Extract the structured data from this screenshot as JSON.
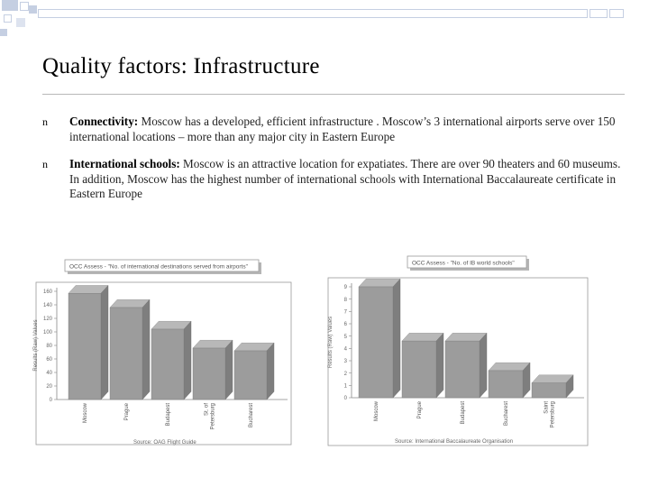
{
  "slide": {
    "title": "Quality factors: Infrastructure",
    "bullets": [
      {
        "term": "Connectivity:",
        "text": " Moscow has a developed, efficient infrastructure . Moscow’s 3 international airports serve over 150 international locations – more than any major city in Eastern Europe"
      },
      {
        "term": "International schools:",
        "text": "  Moscow is an attractive location for expatiates. There are over 90 theaters and 60 museums. In addition, Moscow has the highest number of international schools with International Baccalaureate certificate in Eastern Europe"
      }
    ],
    "bullet_glyph": "n",
    "colors": {
      "bar": "#9c9c9c",
      "accent": "#c5cfe2",
      "text": "#000000"
    }
  },
  "chart_data": [
    {
      "type": "bar",
      "title": "OCC Assess - \"No. of international destinations served from airports\"",
      "ylabel": "Results (Raw) Values",
      "categories": [
        "Moscow",
        "Prague",
        "Budapest",
        "Saint Petersburg",
        "Bucharest"
      ],
      "category_labels": [
        [
          "Moscow"
        ],
        [
          "Prague"
        ],
        [
          "Budapest"
        ],
        [
          "St. of",
          "Petersburg"
        ],
        [
          "Bucharest"
        ]
      ],
      "values": [
        157,
        136,
        104,
        76,
        72
      ],
      "ylim": [
        0,
        160
      ],
      "yticks": [
        "0",
        "20",
        "40",
        "60",
        "80",
        "100",
        "120",
        "140",
        "160"
      ],
      "source": "Source: OAG Flight Guide"
    },
    {
      "type": "bar",
      "title": "OCC Assess - \"No. of IB world schools\"",
      "ylabel": "Results (Raw) Values",
      "categories": [
        "Moscow",
        "Prague",
        "Budapest",
        "Bucharest",
        "Saint Petersburg"
      ],
      "category_labels": [
        [
          "Moscow"
        ],
        [
          "Prague"
        ],
        [
          "Budapest"
        ],
        [
          "Bucharest"
        ],
        [
          "Saint",
          "Petersburg"
        ]
      ],
      "values": [
        9,
        4.6,
        4.6,
        2.2,
        1.2
      ],
      "ylim": [
        0,
        9
      ],
      "yticks": [
        "0",
        "1",
        "2",
        "3",
        "4",
        "5",
        "6",
        "7",
        "8",
        "9"
      ],
      "source": "Source: International Baccalaureate Organisation"
    }
  ]
}
